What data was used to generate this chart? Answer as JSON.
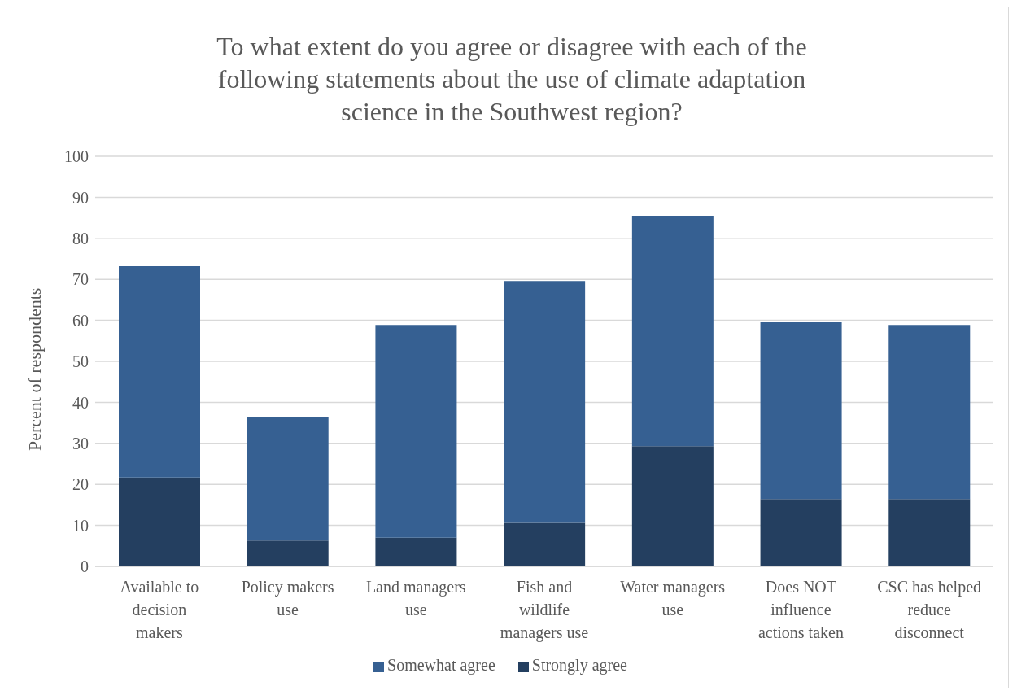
{
  "chart_data": {
    "type": "bar",
    "title": "To what extent do you agree or disagree with each of the following statements about the use of climate adaptation science in the Southwest region?",
    "ylabel": "Percent of respondents",
    "categories": [
      "Available to decision makers",
      "Policy makers use",
      "Land managers use",
      "Fish and wildlife managers use",
      "Water managers use",
      "Does NOT influence actions taken",
      "CSC has helped reduce disconnect"
    ],
    "series": [
      {
        "name": "Strongly agree",
        "color": "#243f60",
        "values": [
          21.7,
          6.3,
          7.0,
          10.6,
          29.3,
          16.4,
          16.4
        ]
      },
      {
        "name": "Somewhat agree",
        "color": "#366092",
        "values": [
          51.5,
          30.1,
          51.9,
          59.0,
          56.2,
          43.1,
          42.5
        ]
      }
    ],
    "stacked": true,
    "ylim": [
      0,
      100
    ],
    "yticks": [
      0,
      10,
      20,
      30,
      40,
      50,
      60,
      70,
      80,
      90,
      100
    ],
    "grid": "y",
    "legend": "bottom"
  }
}
